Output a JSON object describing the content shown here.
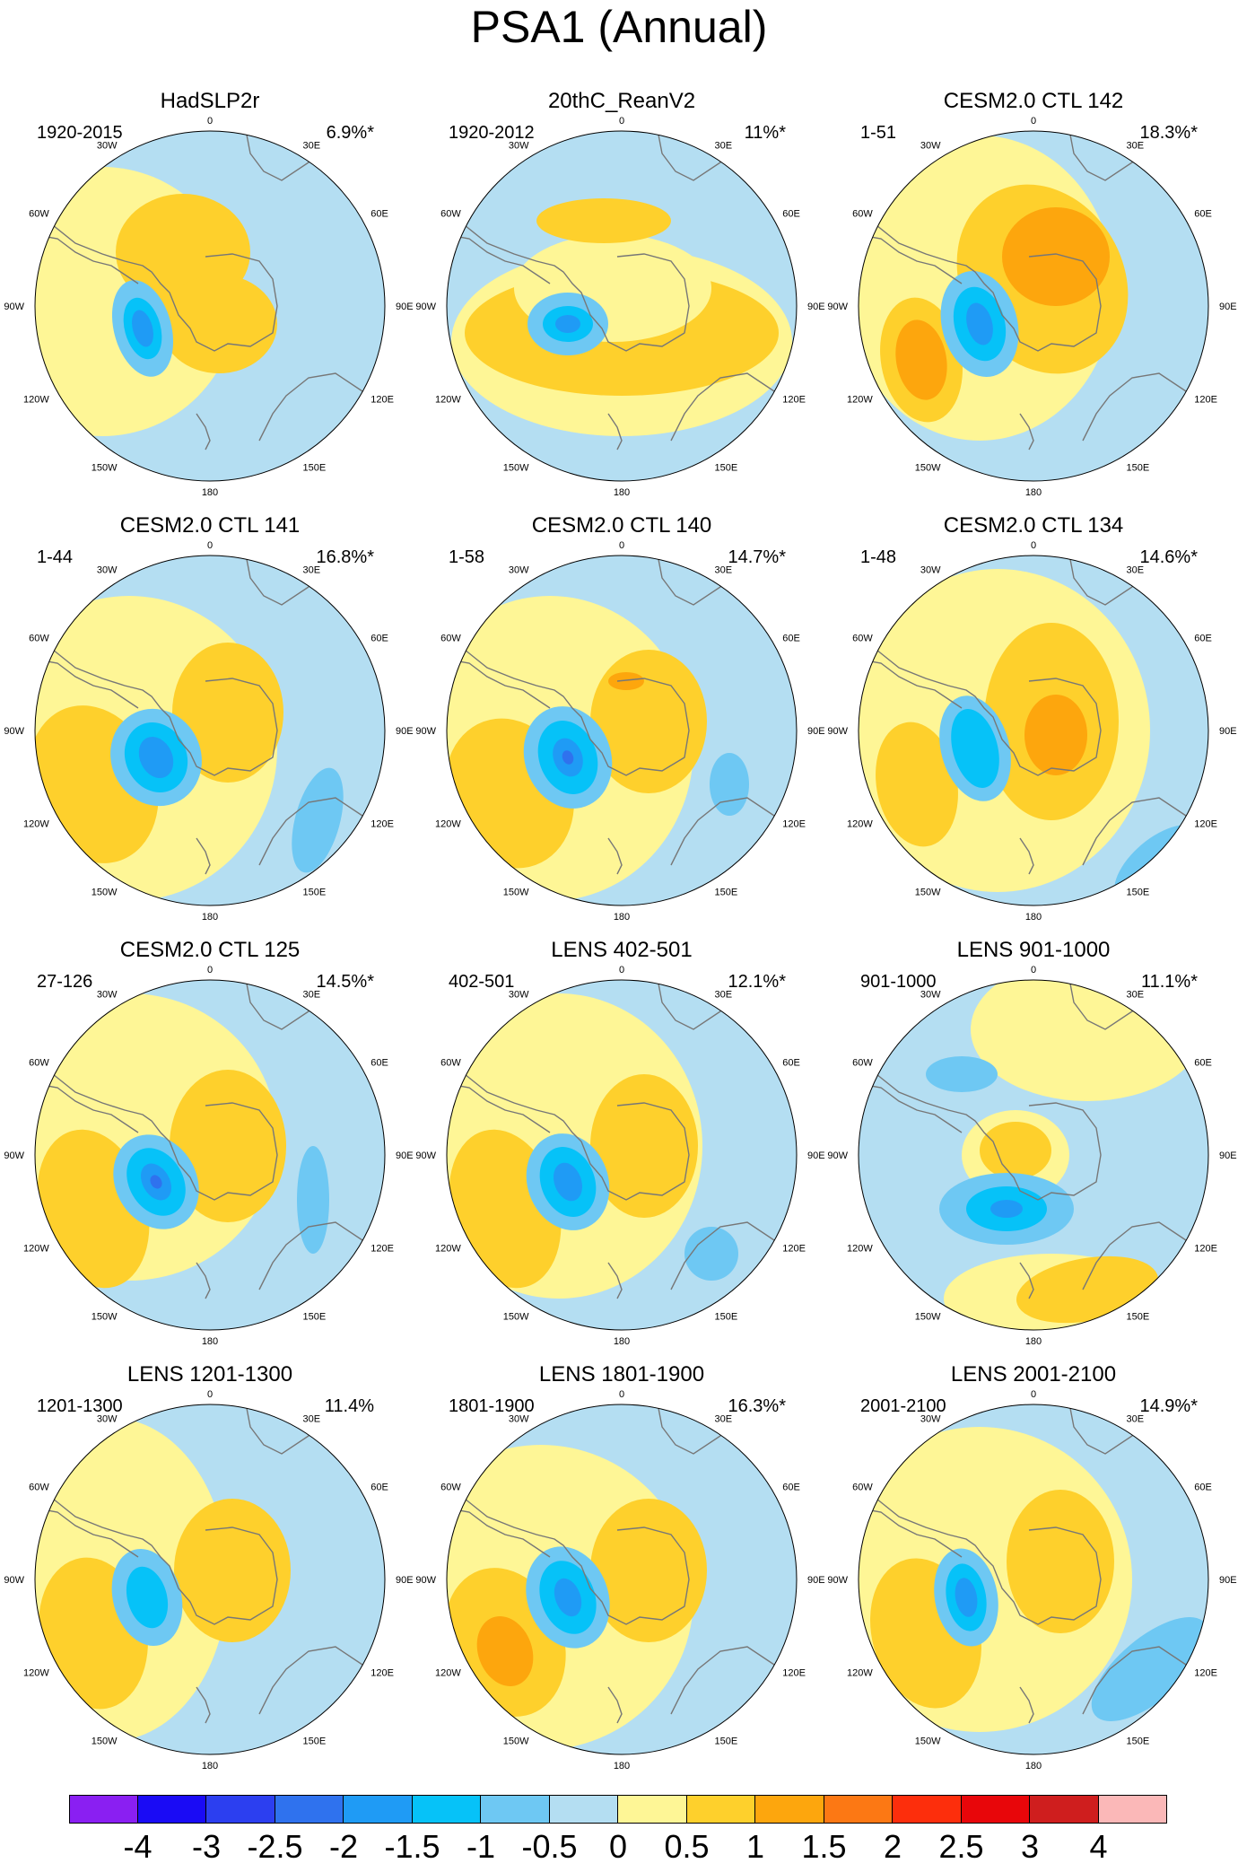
{
  "title": "PSA1 (Annual)",
  "lon_labels": [
    "0",
    "30E",
    "60E",
    "90E",
    "120E",
    "150E",
    "180",
    "150W",
    "120W",
    "90W",
    "60W",
    "30W"
  ],
  "panels": [
    {
      "title": "HadSLP2r",
      "period": "1920-2015",
      "variance": "6.9%*"
    },
    {
      "title": "20thC_ReanV2",
      "period": "1920-2012",
      "variance": "11%*"
    },
    {
      "title": "CESM2.0 CTL 142",
      "period": "1-51",
      "variance": "18.3%*"
    },
    {
      "title": "CESM2.0 CTL 141",
      "period": "1-44",
      "variance": "16.8%*"
    },
    {
      "title": "CESM2.0 CTL 140",
      "period": "1-58",
      "variance": "14.7%*"
    },
    {
      "title": "CESM2.0 CTL 134",
      "period": "1-48",
      "variance": "14.6%*"
    },
    {
      "title": "CESM2.0 CTL 125",
      "period": "27-126",
      "variance": "14.5%*"
    },
    {
      "title": "LENS 402-501",
      "period": "402-501",
      "variance": "12.1%*"
    },
    {
      "title": "LENS 901-1000",
      "period": "901-1000",
      "variance": "11.1%*"
    },
    {
      "title": "LENS 1201-1300",
      "period": "1201-1300",
      "variance": "11.4%"
    },
    {
      "title": "LENS 1801-1900",
      "period": "1801-1900",
      "variance": "16.3%*"
    },
    {
      "title": "LENS 2001-2100",
      "period": "2001-2100",
      "variance": "14.9%*"
    }
  ],
  "colorbar": {
    "labels": [
      "-4",
      "-3",
      "-2.5",
      "-2",
      "-1.5",
      "-1",
      "-0.5",
      "0",
      "0.5",
      "1",
      "1.5",
      "2",
      "2.5",
      "3",
      "4"
    ],
    "colors": [
      "#8a1ff2",
      "#1a0bf5",
      "#2c3ff0",
      "#2f72ee",
      "#1f9bf5",
      "#06c2f8",
      "#6ec8f3",
      "#b4def2",
      "#fef696",
      "#fed02c",
      "#fda60d",
      "#fc7814",
      "#fd2e0c",
      "#e8060a",
      "#cf1e1e",
      "#fbb8b8"
    ]
  }
}
